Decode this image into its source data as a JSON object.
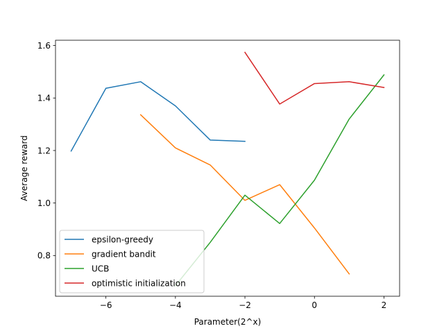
{
  "chart_data": {
    "type": "line",
    "title": "",
    "xlabel": "Parameter(2^x)",
    "ylabel": "Average reward",
    "xlim": [
      -7.45,
      2.45
    ],
    "ylim": [
      0.645,
      1.62
    ],
    "xticks": [
      -6,
      -4,
      -2,
      0,
      2
    ],
    "xtick_labels": [
      "−6",
      "−4",
      "−2",
      "0",
      "2"
    ],
    "yticks": [
      0.8,
      1.0,
      1.2,
      1.4,
      1.6
    ],
    "ytick_labels": [
      "0.8",
      "1.0",
      "1.2",
      "1.4",
      "1.6"
    ],
    "grid": false,
    "legend_position": "lower-left",
    "series": [
      {
        "name": "epsilon-greedy",
        "color": "#1f77b4",
        "x": [
          -7,
          -6,
          -5,
          -4,
          -3,
          -2
        ],
        "y": [
          1.198,
          1.437,
          1.462,
          1.37,
          1.24,
          1.235
        ]
      },
      {
        "name": "gradient bandit",
        "color": "#ff7f0e",
        "x": [
          -5,
          -4,
          -3,
          -2,
          -1,
          0,
          1
        ],
        "y": [
          1.336,
          1.21,
          1.145,
          1.01,
          1.07,
          0.905,
          0.73
        ]
      },
      {
        "name": "UCB",
        "color": "#2ca02c",
        "x": [
          -4,
          -3,
          -2,
          -1,
          0,
          1,
          2
        ],
        "y": [
          0.685,
          0.85,
          1.03,
          0.922,
          1.087,
          1.32,
          1.488
        ]
      },
      {
        "name": "optimistic initialization",
        "color": "#d62728",
        "x": [
          -2,
          -1,
          0,
          1,
          2
        ],
        "y": [
          1.574,
          1.377,
          1.455,
          1.462,
          1.44
        ]
      }
    ]
  }
}
